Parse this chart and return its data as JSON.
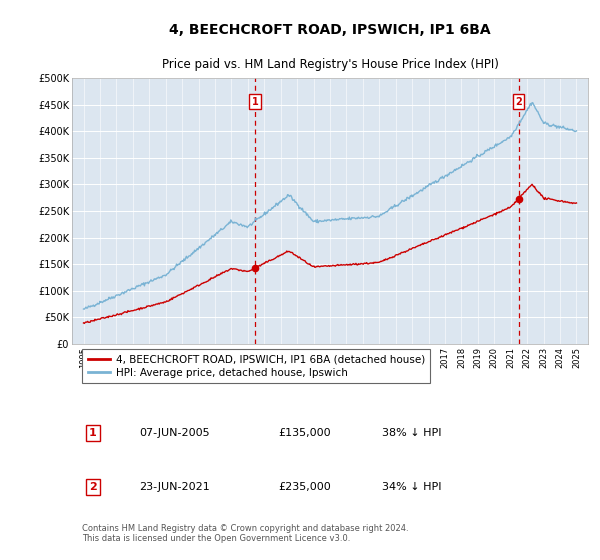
{
  "title": "4, BEECHCROFT ROAD, IPSWICH, IP1 6BA",
  "subtitle": "Price paid vs. HM Land Registry's House Price Index (HPI)",
  "title_fontsize": 10,
  "subtitle_fontsize": 8.5,
  "background_color": "#dce6f0",
  "plot_bg_color": "#dce6f0",
  "ylabel_ticks": [
    "£0",
    "£50K",
    "£100K",
    "£150K",
    "£200K",
    "£250K",
    "£300K",
    "£350K",
    "£400K",
    "£450K",
    "£500K"
  ],
  "ytick_values": [
    0,
    50000,
    100000,
    150000,
    200000,
    250000,
    300000,
    350000,
    400000,
    450000,
    500000
  ],
  "ylim": [
    0,
    500000
  ],
  "hpi_color": "#7ab3d4",
  "price_color": "#cc0000",
  "sale1_year": 2005.44,
  "sale1_price": 135000,
  "sale1_date": "07-JUN-2005",
  "sale2_year": 2021.48,
  "sale2_price": 235000,
  "sale2_date": "23-JUN-2021",
  "legend_label1": "4, BEECHCROFT ROAD, IPSWICH, IP1 6BA (detached house)",
  "legend_label2": "HPI: Average price, detached house, Ipswich",
  "footer": "Contains HM Land Registry data © Crown copyright and database right 2024.\nThis data is licensed under the Open Government Licence v3.0.",
  "marker_box_color": "#cc0000",
  "sale1_pct": "38% ↓ HPI",
  "sale2_pct": "34% ↓ HPI"
}
